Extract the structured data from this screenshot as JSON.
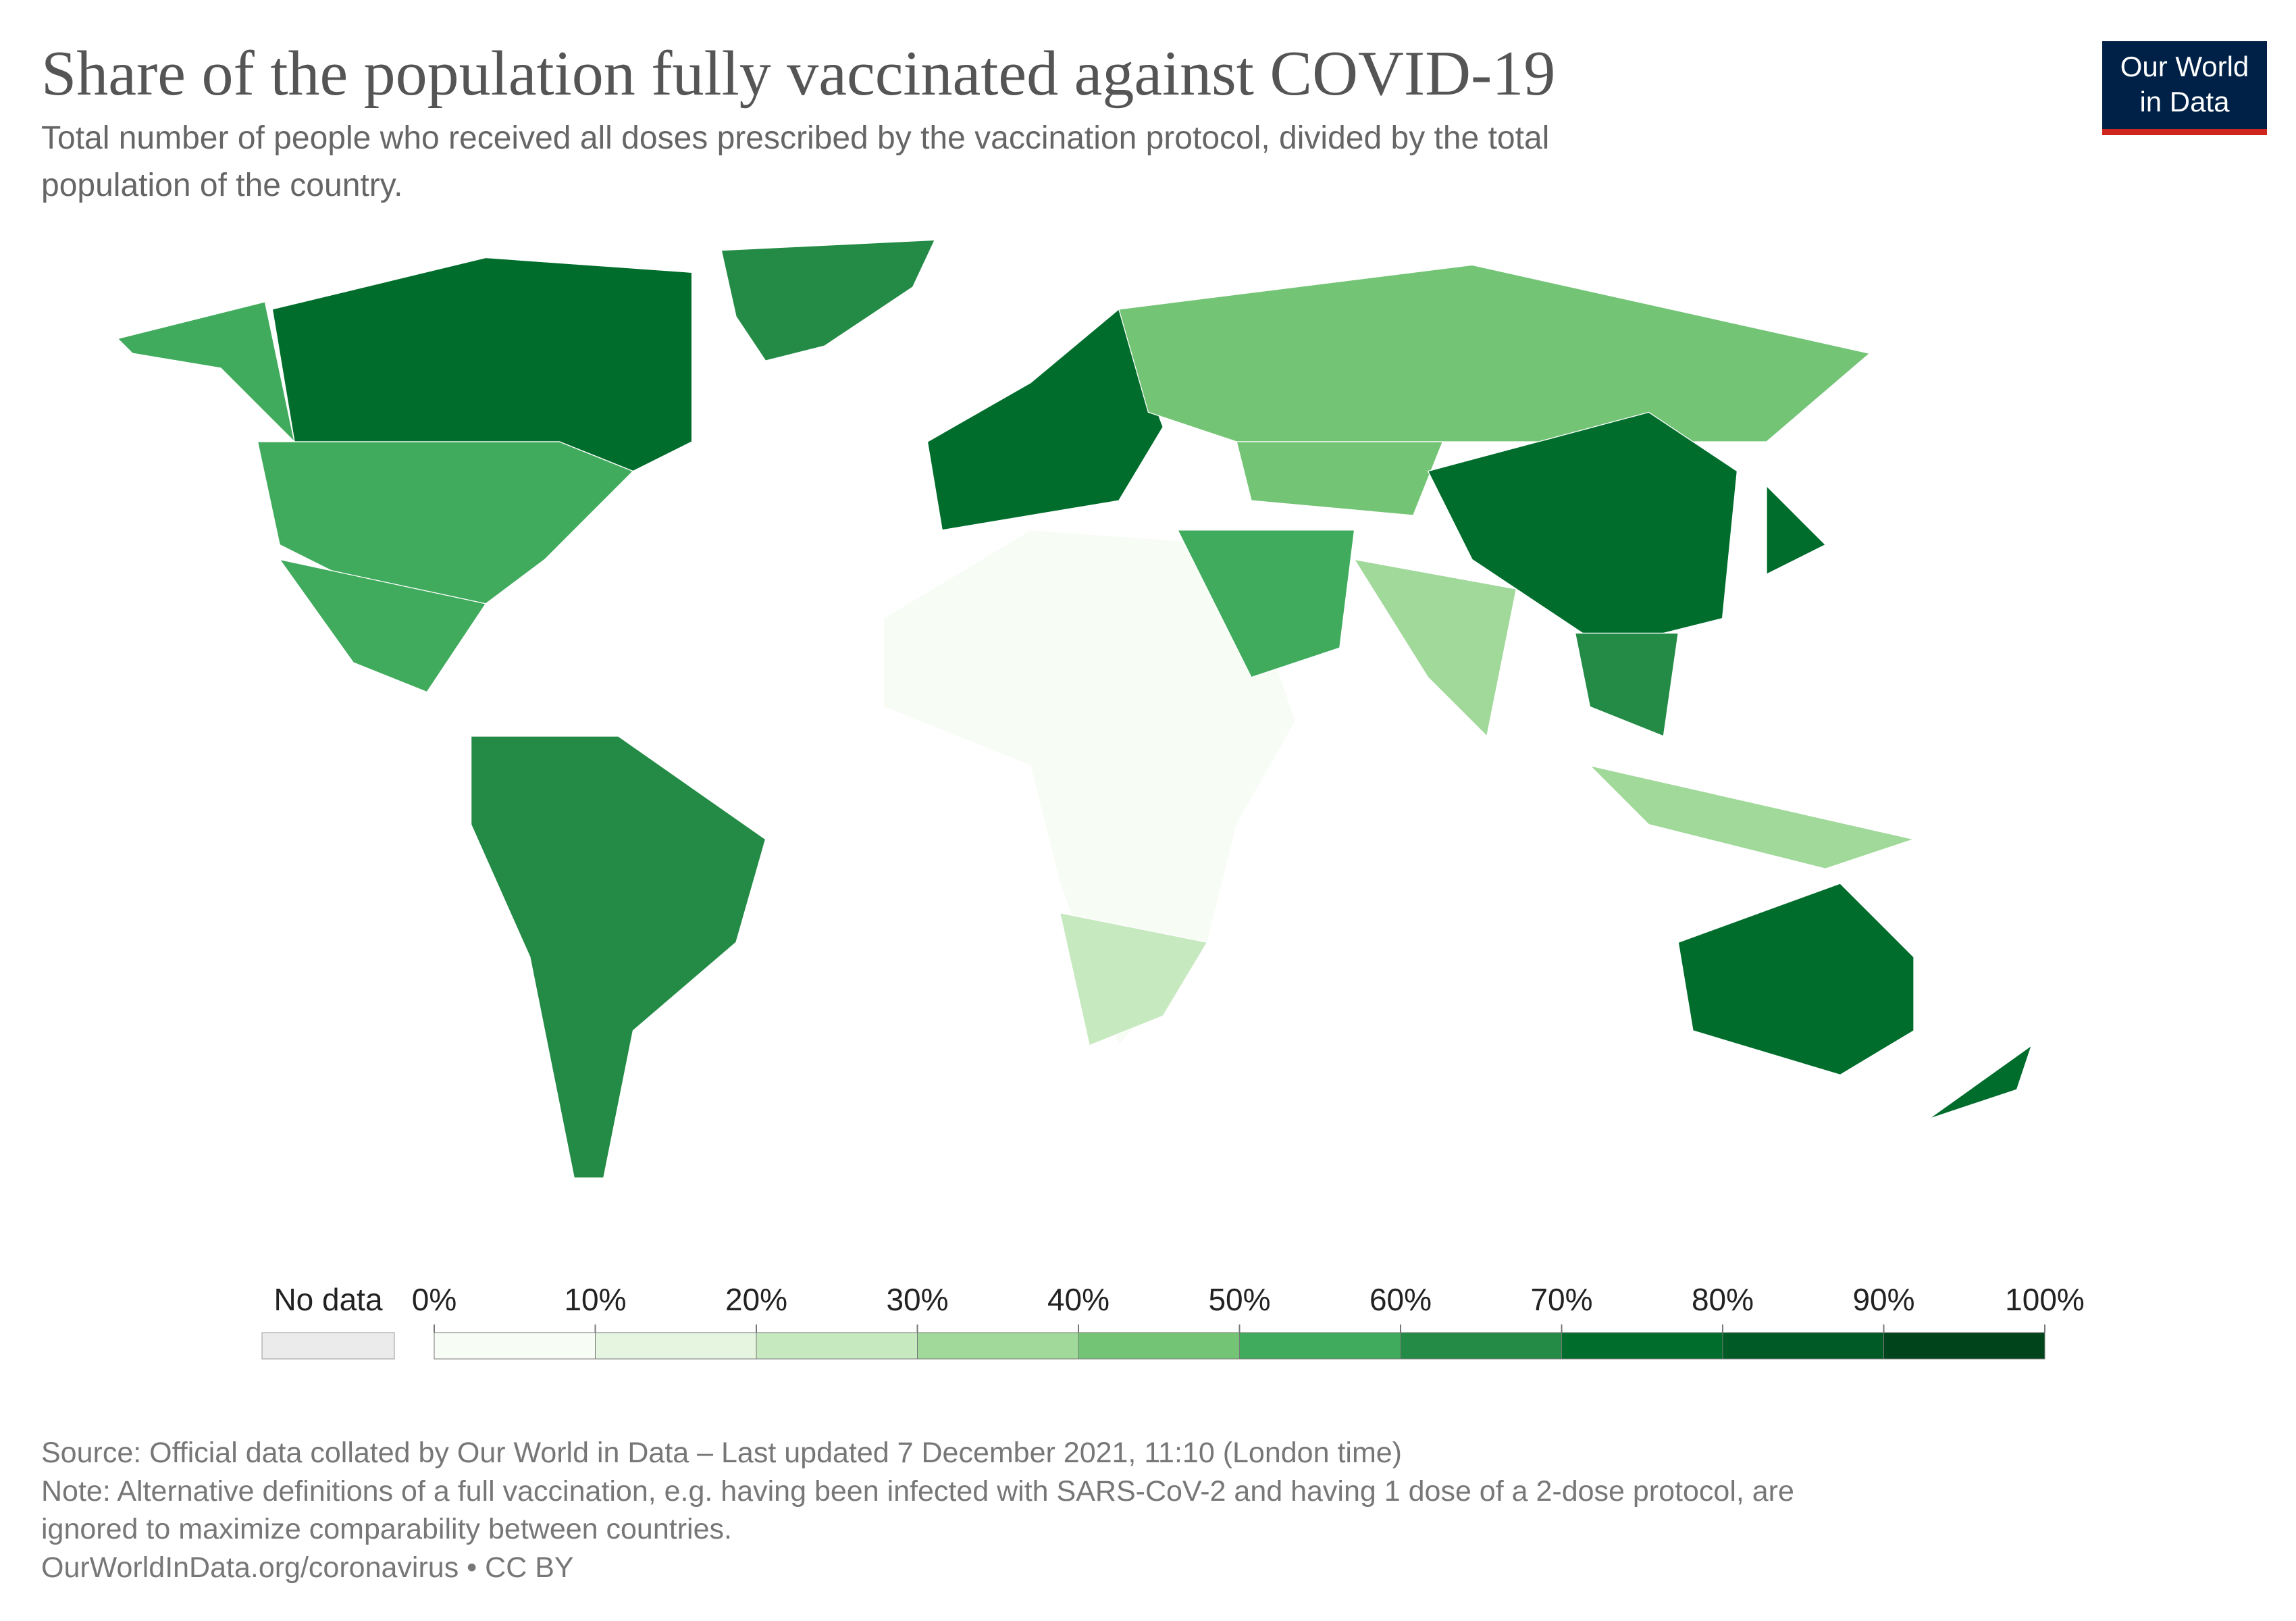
{
  "header": {
    "title": "Share of the population fully vaccinated against COVID-19",
    "subtitle": [
      "Total number of people who received all doses prescribed by the vaccination protocol, divided by the total",
      "population of the country."
    ]
  },
  "logo": [
    "Our World",
    "in Data"
  ],
  "legend": {
    "no_data_label": "No data",
    "no_data_color": "#ebebeb",
    "ticks": [
      {
        "value": 0,
        "label": "0%"
      },
      {
        "value": 10,
        "label": "10%"
      },
      {
        "value": 20,
        "label": "20%"
      },
      {
        "value": 30,
        "label": "30%"
      },
      {
        "value": 40,
        "label": "40%"
      },
      {
        "value": 50,
        "label": "50%"
      },
      {
        "value": 60,
        "label": "60%"
      },
      {
        "value": 70,
        "label": "70%"
      },
      {
        "value": 80,
        "label": "80%"
      },
      {
        "value": 90,
        "label": "90%"
      },
      {
        "value": 100,
        "label": "100%"
      }
    ],
    "colors": [
      "#f7fcf5",
      "#e5f5e0",
      "#c7e9c0",
      "#a1d99b",
      "#74c476",
      "#41ab5d",
      "#238b45",
      "#006d2c",
      "#005a25",
      "#00441b"
    ]
  },
  "footer": [
    "Source: Official data collated by Our World in Data – Last updated 7 December 2021, 11:10 (London time)",
    "Note: Alternative definitions of a full vaccination, e.g. having been infected with SARS-CoV-2 and having 1 dose of a 2-dose protocol, are",
    "ignored to maximize comparability between countries.",
    "OurWorldInData.org/coronavirus • CC BY"
  ]
}
